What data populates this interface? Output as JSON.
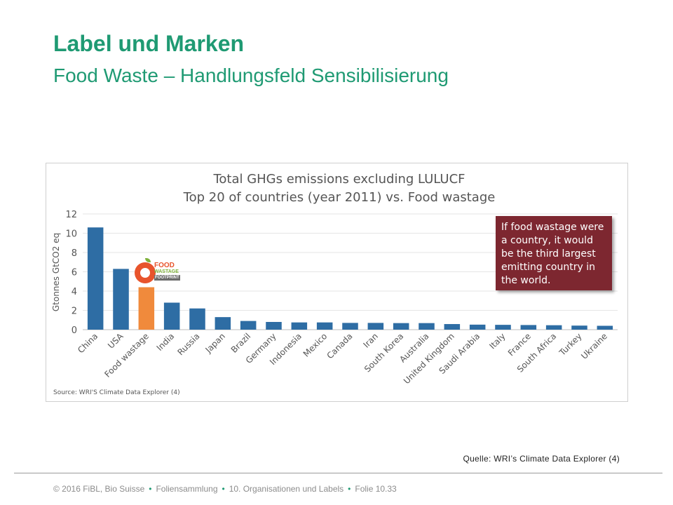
{
  "slide": {
    "title": "Label und Marken",
    "subtitle": "Food Waste – Handlungsfeld Sensibilisierung"
  },
  "chart_data": {
    "type": "bar",
    "title_lines": [
      "Total GHGs emissions excluding LULUCF",
      "Top 20 of countries (year 2011) vs. Food wastage"
    ],
    "ylabel": "Gtonnes GtCO2 eq",
    "ylim": [
      0,
      12
    ],
    "yticks": [
      0,
      2,
      4,
      6,
      8,
      10,
      12
    ],
    "grid": true,
    "categories": [
      "China",
      "USA",
      "Food wastage",
      "India",
      "Russia",
      "Japan",
      "Brazil",
      "Germany",
      "Indonesia",
      "Mexico",
      "Canada",
      "Iran",
      "South Korea",
      "Australia",
      "United Kingdom",
      "Saudi Arabia",
      "Italy",
      "France",
      "South Africa",
      "Turkey",
      "Ukraine"
    ],
    "values": [
      10.6,
      6.3,
      4.4,
      2.8,
      2.2,
      1.3,
      0.9,
      0.8,
      0.75,
      0.75,
      0.7,
      0.7,
      0.68,
      0.68,
      0.58,
      0.52,
      0.5,
      0.48,
      0.46,
      0.42,
      0.4
    ],
    "colors": {
      "default": "#2e6da4",
      "highlight": "#f08a3c"
    },
    "highlight_index": 2,
    "annotation": "If food wastage were a country, it would be the third largest emitting country in the world.",
    "source": "Source: WRI'S Climate Data Explorer (4)",
    "logo": {
      "line1": "FOOD",
      "line2": "WASTAGE",
      "line3": "FOOTPRINT"
    }
  },
  "credit": "Quelle: WRI’s Climate Data Explorer (4)",
  "footer": {
    "items": [
      "© 2016 FiBL, Bio Suisse",
      "Foliensammlung",
      "10. Organisationen und Labels",
      "Folie 10.33"
    ]
  }
}
